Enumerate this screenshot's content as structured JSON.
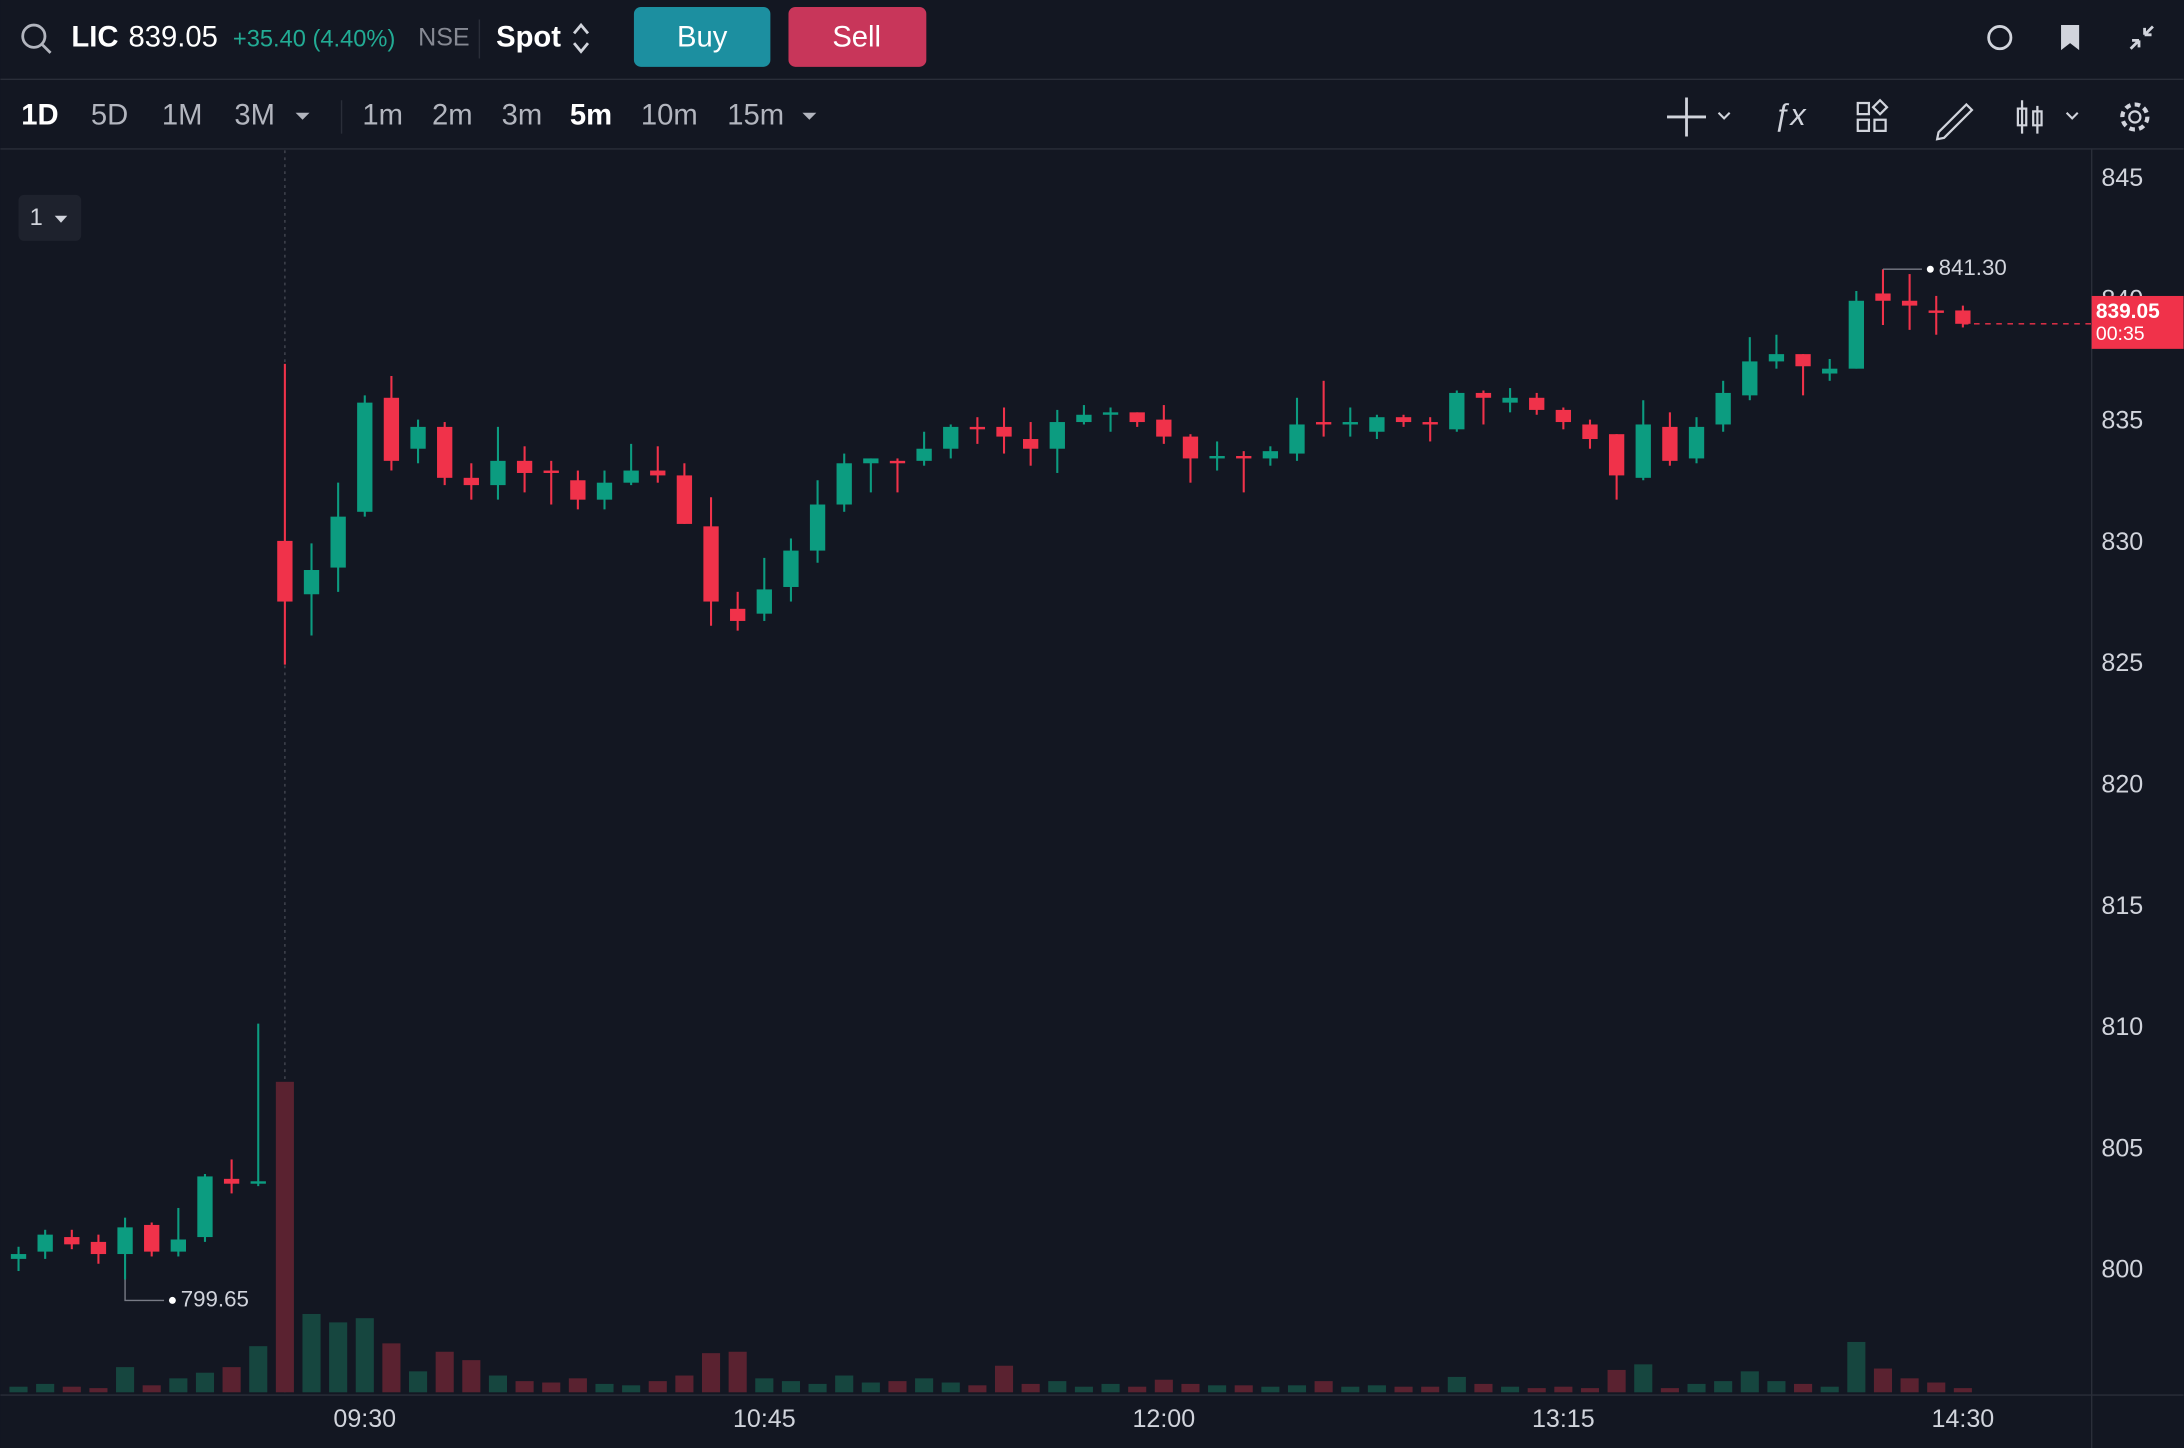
{
  "header": {
    "symbol": "LIC",
    "price": "839.05",
    "change": "+35.40 (4.40%)",
    "exchange": "NSE",
    "market": "Spot",
    "buy": "Buy",
    "sell": "Sell"
  },
  "toolbar": {
    "ranges": [
      "1D",
      "5D",
      "1M",
      "3M"
    ],
    "intervals": [
      "1m",
      "2m",
      "3m",
      "5m",
      "10m",
      "15m"
    ],
    "active_range": "1D",
    "active_interval": "5m",
    "pane_selector": "1"
  },
  "chart_data": {
    "type": "candlestick",
    "categories": [
      null,
      null,
      null,
      null,
      null,
      null,
      null,
      null,
      null,
      null,
      null,
      null,
      null,
      "09:30",
      null,
      null,
      null,
      null,
      null,
      null,
      null,
      null,
      null,
      null,
      null,
      null,
      null,
      null,
      "10:45",
      null,
      null,
      null,
      null,
      null,
      null,
      null,
      null,
      null,
      null,
      null,
      null,
      null,
      null,
      "12:00",
      null,
      null,
      null,
      null,
      null,
      null,
      null,
      null,
      null,
      null,
      null,
      null,
      null,
      null,
      "13:15",
      null,
      null,
      null,
      null,
      null,
      null,
      null,
      null,
      null,
      null,
      null,
      null,
      null,
      null,
      "14:30"
    ],
    "open": [
      800.5,
      800.8,
      801.4,
      801.2,
      800.7,
      801.9,
      800.8,
      801.4,
      803.8,
      803.6,
      830.1,
      827.9,
      829,
      831.3,
      836,
      833.9,
      834.8,
      832.7,
      832.4,
      833.4,
      833,
      832.6,
      831.8,
      832.5,
      833,
      832.8,
      830.7,
      827.3,
      827.1,
      828.2,
      829.7,
      831.6,
      833.3,
      833.4,
      833.4,
      833.9,
      834.8,
      834.8,
      834.3,
      833.9,
      835,
      835.3,
      835.4,
      835.1,
      834.4,
      833.5,
      833.6,
      833.5,
      833.7,
      835,
      834.9,
      834.6,
      835.2,
      835,
      834.7,
      836.2,
      835.8,
      836,
      835.5,
      834.9,
      834.5,
      832.7,
      834.8,
      833.5,
      834.9,
      836.1,
      837.5,
      837.8,
      837,
      837.2,
      840.3,
      840,
      839.6,
      839.6
    ],
    "high": [
      801,
      801.7,
      801.7,
      801.5,
      802.2,
      802,
      802.6,
      804,
      804.6,
      810.2,
      837.4,
      830,
      832.5,
      836.1,
      836.9,
      835.1,
      835,
      833.3,
      834.8,
      834,
      833.4,
      833,
      833,
      834.1,
      834,
      833.3,
      831.9,
      828,
      829.4,
      830.2,
      832.6,
      833.7,
      833.5,
      833.5,
      834.6,
      834.9,
      835.2,
      835.6,
      835,
      835.5,
      835.7,
      835.6,
      835.4,
      835.7,
      834.5,
      834.2,
      833.8,
      834,
      836,
      836.7,
      835.6,
      835.3,
      835.3,
      835.2,
      836.3,
      836.3,
      836.4,
      836.2,
      835.6,
      835.1,
      834.5,
      835.9,
      835.4,
      835.2,
      836.7,
      838.5,
      838.6,
      837.8,
      837.6,
      840.4,
      841.3,
      841.1,
      840.2,
      839.8
    ],
    "low": [
      800,
      800.5,
      800.9,
      800.3,
      799.65,
      800.6,
      800.6,
      801.2,
      803.2,
      803.5,
      825,
      826.2,
      828,
      831.1,
      833,
      833.3,
      832.4,
      831.8,
      831.8,
      832.1,
      831.6,
      831.4,
      831.4,
      832.4,
      832.5,
      830.8,
      826.6,
      826.4,
      826.8,
      827.6,
      829.2,
      831.3,
      832.1,
      832.1,
      833.2,
      833.5,
      834.1,
      833.7,
      833.2,
      832.9,
      834.9,
      834.6,
      834.8,
      834.1,
      832.5,
      833,
      832.1,
      833.2,
      833.4,
      834.4,
      834.4,
      834.3,
      834.8,
      834.2,
      834.6,
      834.9,
      835.4,
      835.3,
      834.7,
      833.9,
      831.8,
      832.6,
      833.2,
      833.3,
      834.6,
      835.9,
      837.2,
      836.1,
      836.7,
      837.2,
      839,
      838.8,
      838.6,
      838.9
    ],
    "close": [
      800.7,
      801.5,
      801.1,
      800.7,
      801.8,
      800.8,
      801.3,
      803.9,
      803.6,
      803.7,
      827.6,
      828.9,
      831.1,
      835.8,
      833.4,
      834.8,
      832.7,
      832.4,
      833.4,
      832.9,
      832.9,
      831.8,
      832.5,
      833,
      832.8,
      830.8,
      827.6,
      826.8,
      828.1,
      829.7,
      831.6,
      833.3,
      833.5,
      833.3,
      833.9,
      834.8,
      834.7,
      834.4,
      833.9,
      835,
      835.3,
      835.4,
      835,
      834.4,
      833.5,
      833.6,
      833.5,
      833.8,
      834.9,
      834.9,
      835,
      835.2,
      835,
      834.9,
      836.2,
      836,
      836,
      835.5,
      835,
      834.3,
      832.8,
      834.9,
      833.4,
      834.8,
      836.2,
      837.5,
      837.8,
      837.3,
      837.2,
      840,
      840,
      839.8,
      839.5,
      839.05
    ],
    "volume": [
      4,
      6,
      4,
      3,
      18,
      5,
      10,
      14,
      18,
      33,
      222,
      56,
      50,
      53,
      35,
      15,
      29,
      23,
      12,
      8,
      7,
      10,
      6,
      5,
      8,
      12,
      28,
      29,
      10,
      8,
      6,
      12,
      7,
      8,
      10,
      7,
      5,
      19,
      6,
      8,
      4,
      6,
      4,
      9,
      6,
      5,
      5,
      4,
      5,
      8,
      4,
      5,
      4,
      4,
      11,
      6,
      4,
      3,
      4,
      3,
      16,
      20,
      3,
      6,
      8,
      15,
      8,
      6,
      4,
      36,
      17,
      10,
      7,
      3
    ],
    "up_color": "#0c9c80",
    "down_color": "#f0324a",
    "volume_up_color": "#16463f",
    "volume_down_color": "#5a2230",
    "ylim": [
      795,
      846.2
    ],
    "yticks": [
      800,
      805,
      810,
      815,
      820,
      825,
      830,
      835,
      840,
      845
    ],
    "grid": false,
    "max_label": {
      "value": 841.3,
      "label": "841.30"
    },
    "min_label": {
      "value": 799.65,
      "label": "799.65"
    },
    "last_price": {
      "value": 839.05,
      "countdown": "00:35"
    }
  }
}
